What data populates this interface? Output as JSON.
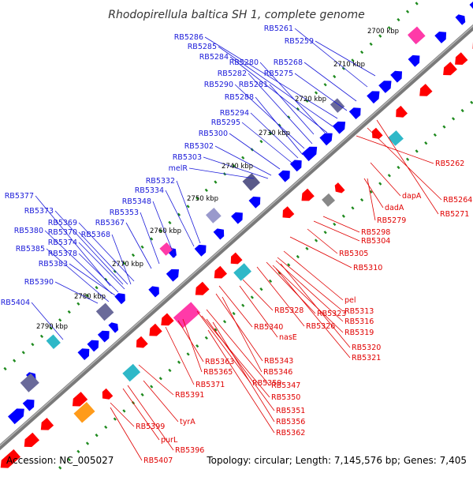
{
  "header": {
    "title": "Rhodopirellula baltica SH 1, complete genome"
  },
  "footer": {
    "accession": "Accession: NC_005027",
    "topology": "Topology: circular; Length: 7,145,576 bp; Genes: 7,405"
  },
  "colors": {
    "forward": "#0000ff",
    "reverse": "#ff0000",
    "forward_label": "#1a1ad9",
    "reverse_label": "#e00000",
    "backbone": "#808080",
    "ticks": "#1e8a1e"
  },
  "icons": {
    "forward_gene": "blue-arrow-icon",
    "reverse_gene": "red-arrow-icon"
  },
  "kbp_ticks": [
    "2700 kbp",
    "2710 kbp",
    "2720 kbp",
    "2730 kbp",
    "2740 kbp",
    "2750 kbp",
    "2760 kbp",
    "2770 kbp",
    "2780 kbp",
    "2790 kbp"
  ],
  "forward_labels": [
    "RB5261",
    "RB5259",
    "RB5286",
    "RB5285",
    "RB5284",
    "RB5280",
    "RB5268",
    "RB5282",
    "RB5275",
    "RB5290",
    "RB5281",
    "RB5288",
    "RB5294",
    "RB5295",
    "RB5300",
    "RB5302",
    "RB5303",
    "melR",
    "RB5332",
    "RB5334",
    "RB5348",
    "RB5377",
    "RB5353",
    "RB5373",
    "RB5367",
    "RB5369",
    "RB5370",
    "RB5368",
    "RB5380",
    "RB5374",
    "RB5385",
    "RB5378",
    "RB5383",
    "RB5390",
    "RB5404"
  ],
  "reverse_labels": [
    "RB5262",
    "RB5264",
    "dapA",
    "RB5271",
    "dadA",
    "RB5279",
    "RB5298",
    "RB5304",
    "RB5305",
    "RB5310",
    "pel",
    "RB5313",
    "RB5316",
    "RB5319",
    "RB5328",
    "RB5323",
    "RB5326",
    "RB5320",
    "RB5321",
    "RB5340",
    "nasE",
    "RB5343",
    "RB5346",
    "RB5363",
    "RB5365",
    "RB5347",
    "RB5359",
    "RB5350",
    "RB5371",
    "RB5351",
    "RB5391",
    "RB5356",
    "RB5362",
    "tyrA",
    "RB5399",
    "purL",
    "RB5396",
    "RB5407"
  ]
}
